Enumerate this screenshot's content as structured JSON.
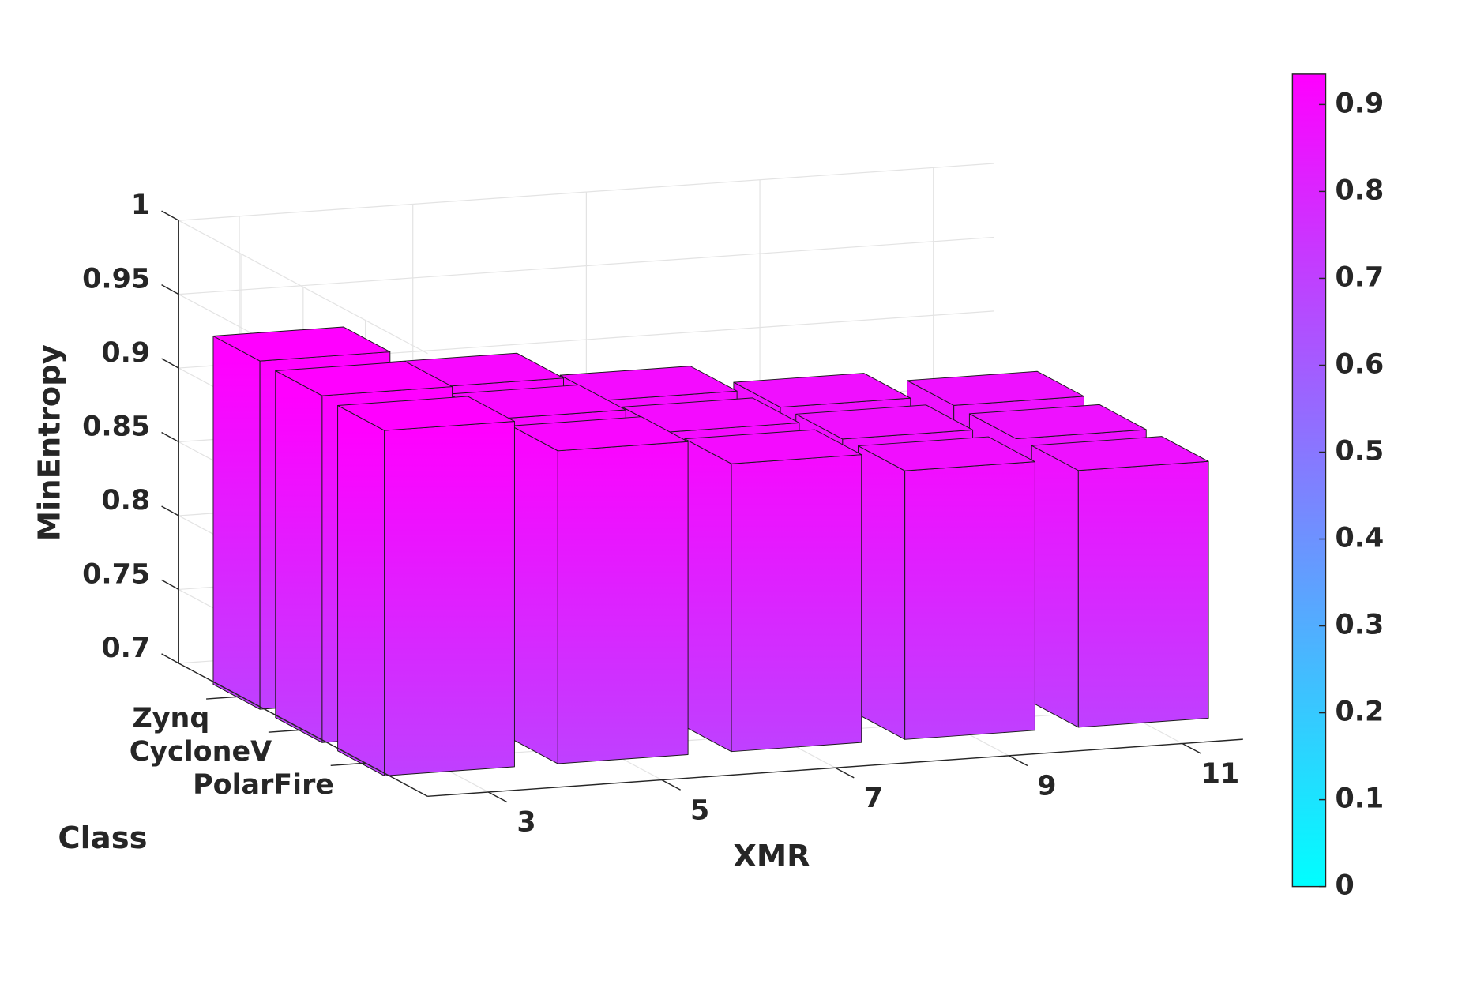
{
  "chart_data": {
    "type": "bar3d",
    "xlabel": "XMR",
    "ylabel": "Class",
    "zlabel": "MinEntropy",
    "categories": [
      "3",
      "5",
      "7",
      "9",
      "11"
    ],
    "series": [
      {
        "name": "Zynq",
        "values": [
          0.936,
          0.91,
          0.893,
          0.88,
          0.873
        ]
      },
      {
        "name": "CycloneV",
        "values": [
          0.935,
          0.911,
          0.894,
          0.881,
          0.873
        ]
      },
      {
        "name": "PolarFire",
        "values": [
          0.934,
          0.912,
          0.895,
          0.882,
          0.874
        ]
      }
    ],
    "zlim": [
      0.7,
      1
    ],
    "zticks": [
      0.7,
      0.75,
      0.8,
      0.85,
      0.9,
      0.95,
      1
    ],
    "grid": true,
    "colorbar": {
      "clim": [
        0,
        0.935
      ],
      "ticks": [
        0,
        0.1,
        0.2,
        0.3,
        0.4,
        0.5,
        0.6,
        0.7,
        0.8,
        0.9
      ],
      "colormap": [
        "#00ffff",
        "#ff00ff"
      ]
    }
  }
}
